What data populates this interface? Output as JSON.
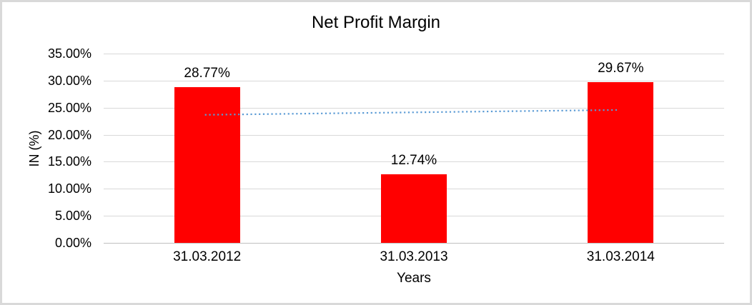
{
  "chart_data": {
    "type": "bar",
    "title": "Net Profit Margin",
    "xlabel": "Years",
    "ylabel": "IN (%)",
    "categories": [
      "31.03.2012",
      "31.03.2013",
      "31.03.2014"
    ],
    "values": [
      28.77,
      12.74,
      29.67
    ],
    "data_labels": [
      "28.77%",
      "12.74%",
      "29.67%"
    ],
    "ylim": [
      0,
      35
    ],
    "y_tick_step": 5,
    "y_tick_labels": [
      "0.00%",
      "5.00%",
      "10.00%",
      "15.00%",
      "20.00%",
      "25.00%",
      "30.00%",
      "35.00%"
    ],
    "grid": "horizontal-on",
    "legend": "none",
    "trendline": {
      "type": "linear-dotted",
      "start_value": 23.28,
      "end_value": 24.18
    },
    "colors": {
      "bar": "#FF0000",
      "trendline": "#5B9BD5",
      "gridline": "#D9D9D9",
      "axis_line": "#BFBFBF",
      "text": "#000000",
      "frame_border": "#D9D9D9",
      "background": "#FFFFFF"
    }
  }
}
